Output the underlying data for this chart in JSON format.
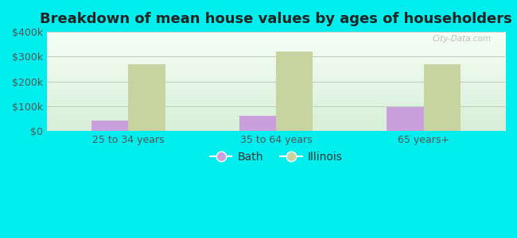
{
  "title": "Breakdown of mean house values by ages of householders",
  "categories": [
    "25 to 34 years",
    "35 to 64 years",
    "65 years+"
  ],
  "bath_values": [
    40000,
    60000,
    95000
  ],
  "illinois_values": [
    270000,
    320000,
    270000
  ],
  "bath_color": "#c9a0dc",
  "illinois_color": "#c8d4a0",
  "background_color": "#00eeee",
  "plot_bg_top": "#d8eed8",
  "plot_bg_bottom": "#f5fff5",
  "ylim": [
    0,
    400000
  ],
  "yticks": [
    0,
    100000,
    200000,
    300000,
    400000
  ],
  "ytick_labels": [
    "$0",
    "$100k",
    "$200k",
    "$300k",
    "$400k"
  ],
  "legend_labels": [
    "Bath",
    "Illinois"
  ],
  "bar_width": 0.25,
  "title_fontsize": 13,
  "tick_fontsize": 9,
  "legend_fontsize": 10,
  "grid_color": "#bbccbb",
  "watermark_text": "City-Data.com"
}
